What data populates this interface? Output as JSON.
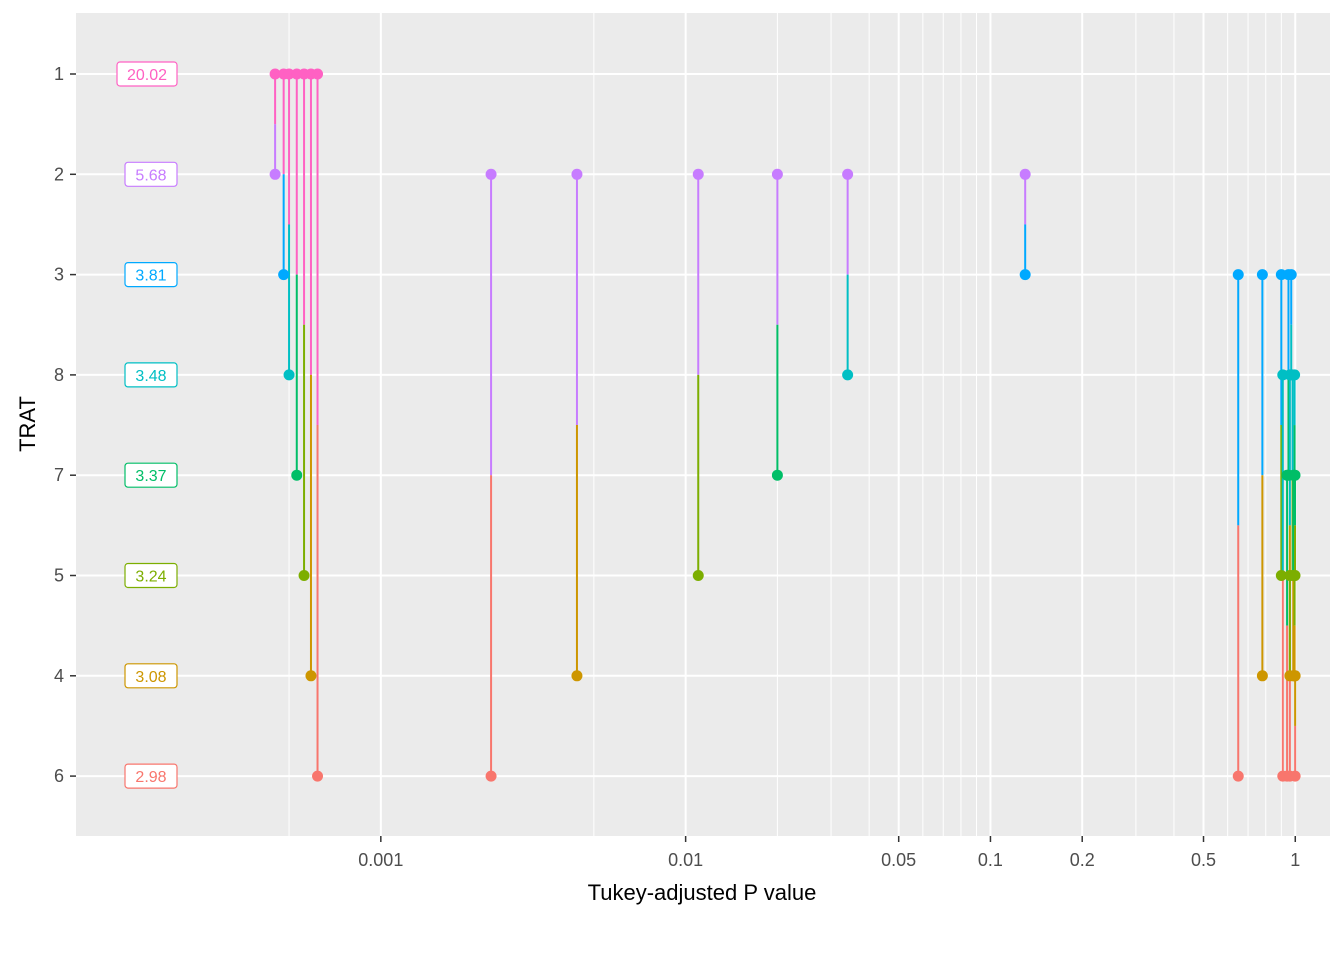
{
  "chart_data": {
    "type": "pvalue-ladder",
    "xlabel": "Tukey-adjusted P value",
    "ylabel": "TRAT",
    "x_scale": "log10",
    "xlim": [
      0.0001,
      1.3
    ],
    "x_major_ticks": [
      0.001,
      0.01,
      0.05,
      0.1,
      0.2,
      0.5,
      1
    ],
    "x_tick_labels": [
      "0.001",
      "0.01",
      "0.05",
      "0.1",
      "0.2",
      "0.5",
      "1"
    ],
    "x_minor_ticks": [
      0.0005,
      0.005,
      0.02,
      0.03,
      0.04,
      0.06,
      0.07,
      0.08,
      0.09,
      0.3,
      0.4,
      0.6,
      0.7,
      0.8,
      0.9
    ],
    "y_categories": [
      "1",
      "2",
      "3",
      "8",
      "7",
      "5",
      "4",
      "6"
    ],
    "mean_labels": [
      {
        "level": "1",
        "text": "20.02",
        "color": "#FF61C3"
      },
      {
        "level": "2",
        "text": "5.68",
        "color": "#C77CFF"
      },
      {
        "level": "3",
        "text": "3.81",
        "color": "#00A9FF"
      },
      {
        "level": "8",
        "text": "3.48",
        "color": "#00BFC4"
      },
      {
        "level": "7",
        "text": "3.37",
        "color": "#00BE67"
      },
      {
        "level": "5",
        "text": "3.24",
        "color": "#7CAE00"
      },
      {
        "level": "4",
        "text": "3.08",
        "color": "#CD9600"
      },
      {
        "level": "6",
        "text": "2.98",
        "color": "#F8766D"
      }
    ],
    "level_colors": {
      "1": "#FF61C3",
      "2": "#C77CFF",
      "3": "#00A9FF",
      "8": "#00BFC4",
      "7": "#00BE67",
      "5": "#7CAE00",
      "4": "#CD9600",
      "6": "#F8766D"
    },
    "comparisons": [
      {
        "a": "1",
        "b": "2",
        "p": 0.00045
      },
      {
        "a": "1",
        "b": "3",
        "p": 0.00048
      },
      {
        "a": "1",
        "b": "8",
        "p": 0.0005
      },
      {
        "a": "1",
        "b": "7",
        "p": 0.00053
      },
      {
        "a": "1",
        "b": "5",
        "p": 0.00056
      },
      {
        "a": "1",
        "b": "4",
        "p": 0.00059
      },
      {
        "a": "1",
        "b": "6",
        "p": 0.00062
      },
      {
        "a": "2",
        "b": "6",
        "p": 0.0023
      },
      {
        "a": "2",
        "b": "4",
        "p": 0.0044
      },
      {
        "a": "2",
        "b": "5",
        "p": 0.011
      },
      {
        "a": "2",
        "b": "7",
        "p": 0.02
      },
      {
        "a": "2",
        "b": "8",
        "p": 0.034
      },
      {
        "a": "2",
        "b": "3",
        "p": 0.13
      },
      {
        "a": "3",
        "b": "6",
        "p": 0.65
      },
      {
        "a": "3",
        "b": "4",
        "p": 0.78
      },
      {
        "a": "3",
        "b": "5",
        "p": 0.9
      },
      {
        "a": "3",
        "b": "7",
        "p": 0.95
      },
      {
        "a": "3",
        "b": "8",
        "p": 0.97
      },
      {
        "a": "8",
        "b": "6",
        "p": 0.91
      },
      {
        "a": "8",
        "b": "4",
        "p": 0.96
      },
      {
        "a": "8",
        "b": "5",
        "p": 0.98
      },
      {
        "a": "8",
        "b": "7",
        "p": 0.995
      },
      {
        "a": "7",
        "b": "6",
        "p": 0.94
      },
      {
        "a": "7",
        "b": "4",
        "p": 0.985
      },
      {
        "a": "7",
        "b": "5",
        "p": 0.998
      },
      {
        "a": "5",
        "b": "6",
        "p": 0.96
      },
      {
        "a": "5",
        "b": "4",
        "p": 0.995
      },
      {
        "a": "4",
        "b": "6",
        "p": 0.999
      }
    ]
  }
}
